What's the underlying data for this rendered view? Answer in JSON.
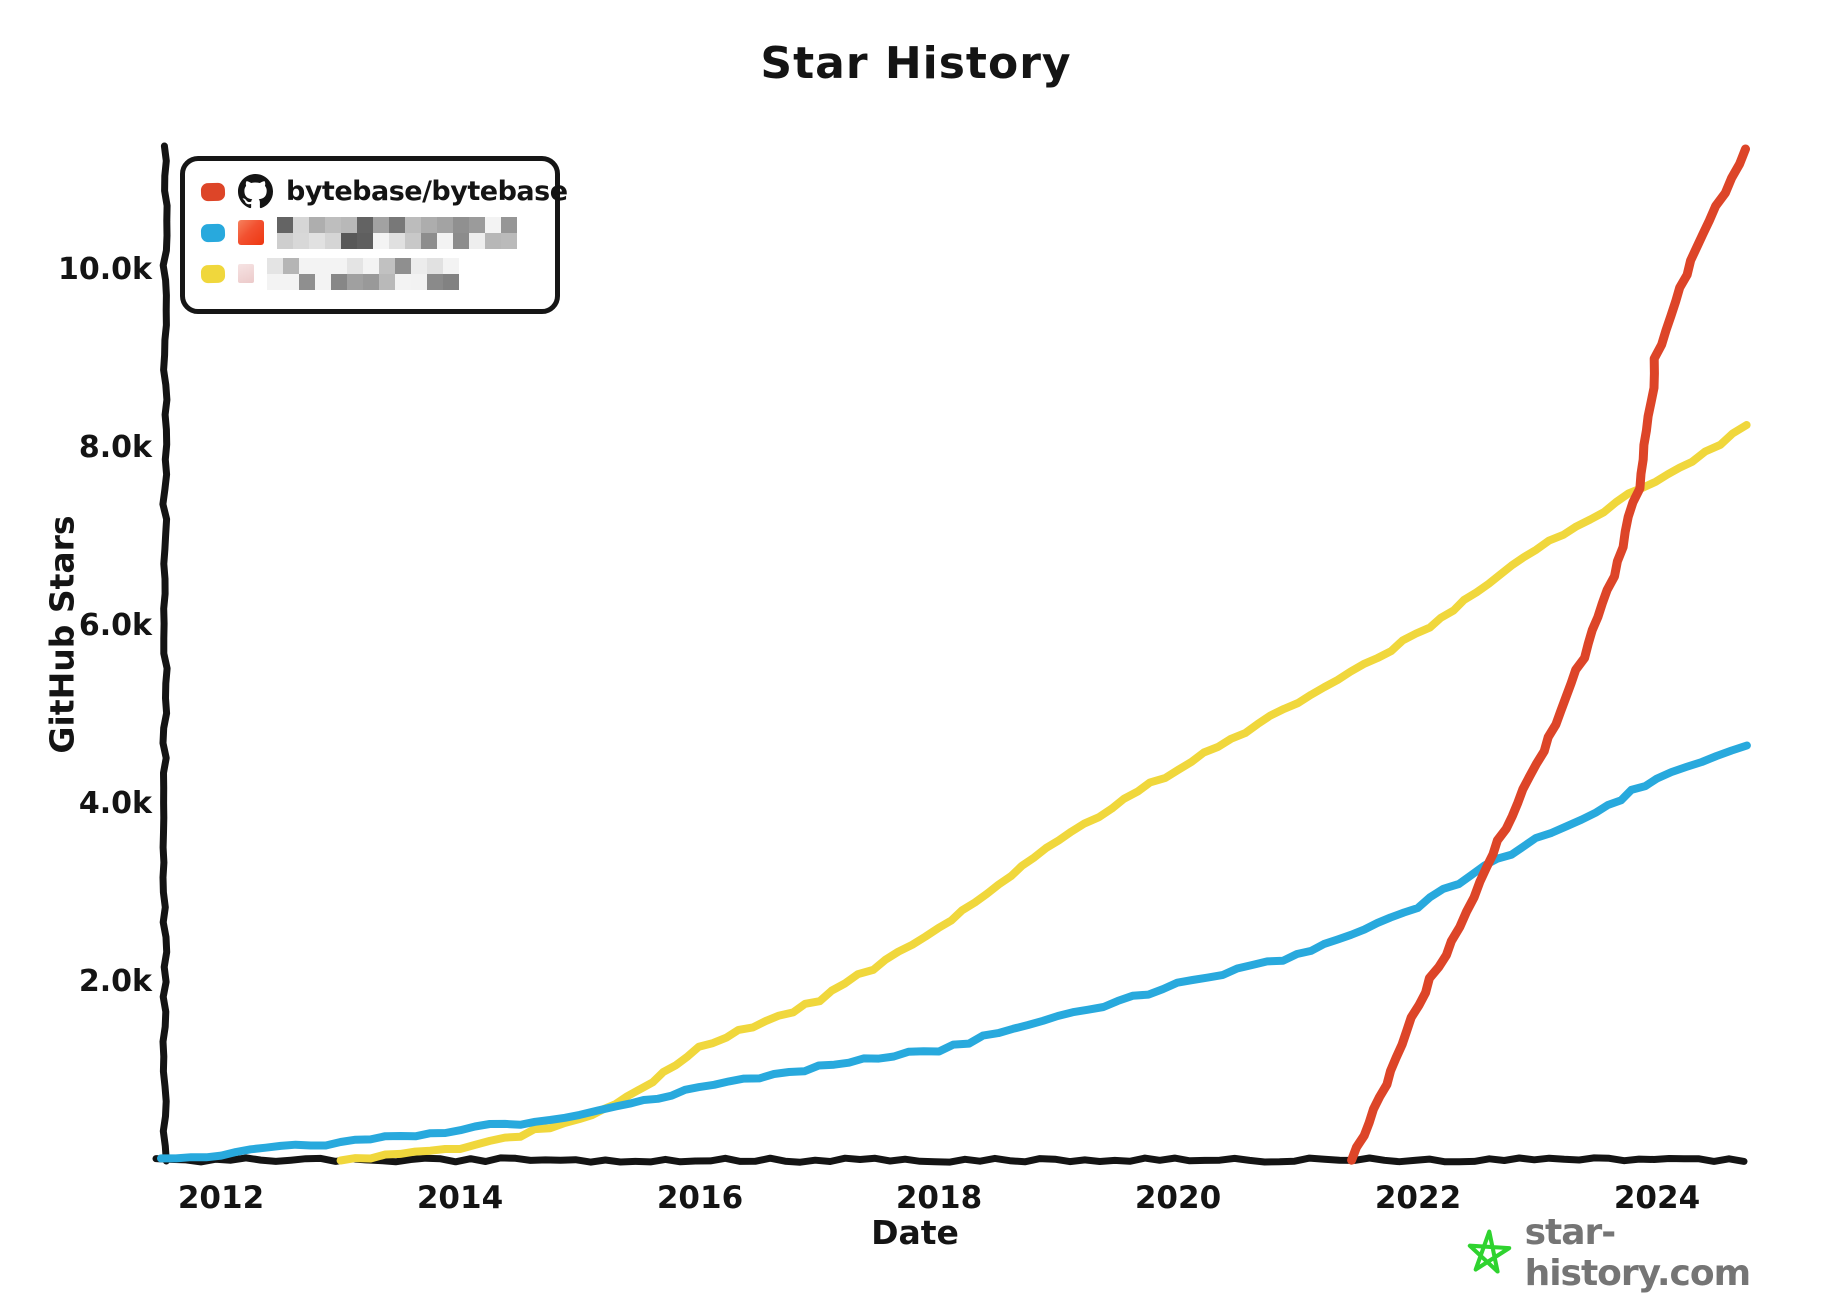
{
  "title": "Star History",
  "y_axis": {
    "label": "GitHub Stars",
    "ticks": [
      "10.0k",
      "8.0k",
      "6.0k",
      "4.0k",
      "2.0k"
    ]
  },
  "x_axis": {
    "label": "Date",
    "ticks": [
      "2012",
      "2014",
      "2016",
      "2018",
      "2020",
      "2022",
      "2024"
    ]
  },
  "legend": {
    "items": [
      {
        "label": "bytebase/bytebase",
        "color": "#dd4528",
        "icon": "github-octocat-icon",
        "censored": false
      },
      {
        "label": "",
        "color": "#28a9dd",
        "icon": "orange-favicon",
        "censored": true,
        "censor_cols": 15
      },
      {
        "label": "",
        "color": "#f0d73c",
        "icon": "pink-favicon",
        "censored": true,
        "censor_cols": 12
      }
    ]
  },
  "watermark": {
    "text": "star-history.com",
    "star_color": "#2fd32f",
    "text_color": "#757575"
  },
  "colors": {
    "axis": "#141414",
    "red": "#dd4528",
    "blue": "#28a9dd",
    "yellow": "#f0d73c"
  },
  "chart_data": {
    "type": "line",
    "title": "Star History",
    "xlabel": "Date",
    "ylabel": "GitHub Stars",
    "x_range": [
      2011.5,
      2024.8
    ],
    "y_range": [
      0,
      11400
    ],
    "x_ticks": [
      2012,
      2014,
      2016,
      2018,
      2020,
      2022,
      2024
    ],
    "y_ticks": [
      2000,
      4000,
      6000,
      8000,
      10000
    ],
    "grid": false,
    "legend_position": "top-left",
    "series": [
      {
        "name": "bytebase/bytebase",
        "color": "#dd4528",
        "points": [
          [
            2021.45,
            0
          ],
          [
            2021.7,
            700
          ],
          [
            2022.0,
            1750
          ],
          [
            2022.3,
            2450
          ],
          [
            2022.57,
            3300
          ],
          [
            2023.0,
            4450
          ],
          [
            2023.3,
            5350
          ],
          [
            2023.6,
            6400
          ],
          [
            2023.85,
            7550
          ],
          [
            2024.0,
            9000
          ],
          [
            2024.15,
            9650
          ],
          [
            2024.45,
            10550
          ],
          [
            2024.76,
            11350
          ]
        ]
      },
      {
        "name": "censored-repo-2",
        "color": "#28a9dd",
        "points": [
          [
            2011.5,
            0
          ],
          [
            2012,
            70
          ],
          [
            2013,
            200
          ],
          [
            2014,
            340
          ],
          [
            2015,
            500
          ],
          [
            2015.3,
            620
          ],
          [
            2016,
            800
          ],
          [
            2017,
            1050
          ],
          [
            2018,
            1240
          ],
          [
            2019,
            1600
          ],
          [
            2020,
            1970
          ],
          [
            2021,
            2300
          ],
          [
            2022,
            2850
          ],
          [
            2022.57,
            3300
          ],
          [
            2023,
            3600
          ],
          [
            2023.5,
            3900
          ],
          [
            2024,
            4300
          ],
          [
            2024.76,
            4650
          ]
        ]
      },
      {
        "name": "censored-repo-3",
        "color": "#f0d73c",
        "points": [
          [
            2013,
            0
          ],
          [
            2014,
            120
          ],
          [
            2015,
            450
          ],
          [
            2015.3,
            620
          ],
          [
            2016,
            1260
          ],
          [
            2017,
            1800
          ],
          [
            2018,
            2600
          ],
          [
            2019,
            3600
          ],
          [
            2020,
            4400
          ],
          [
            2021,
            5150
          ],
          [
            2022,
            5900
          ],
          [
            2023,
            6850
          ],
          [
            2023.89,
            7560
          ],
          [
            2024.3,
            7850
          ],
          [
            2024.76,
            8250
          ]
        ]
      }
    ]
  }
}
